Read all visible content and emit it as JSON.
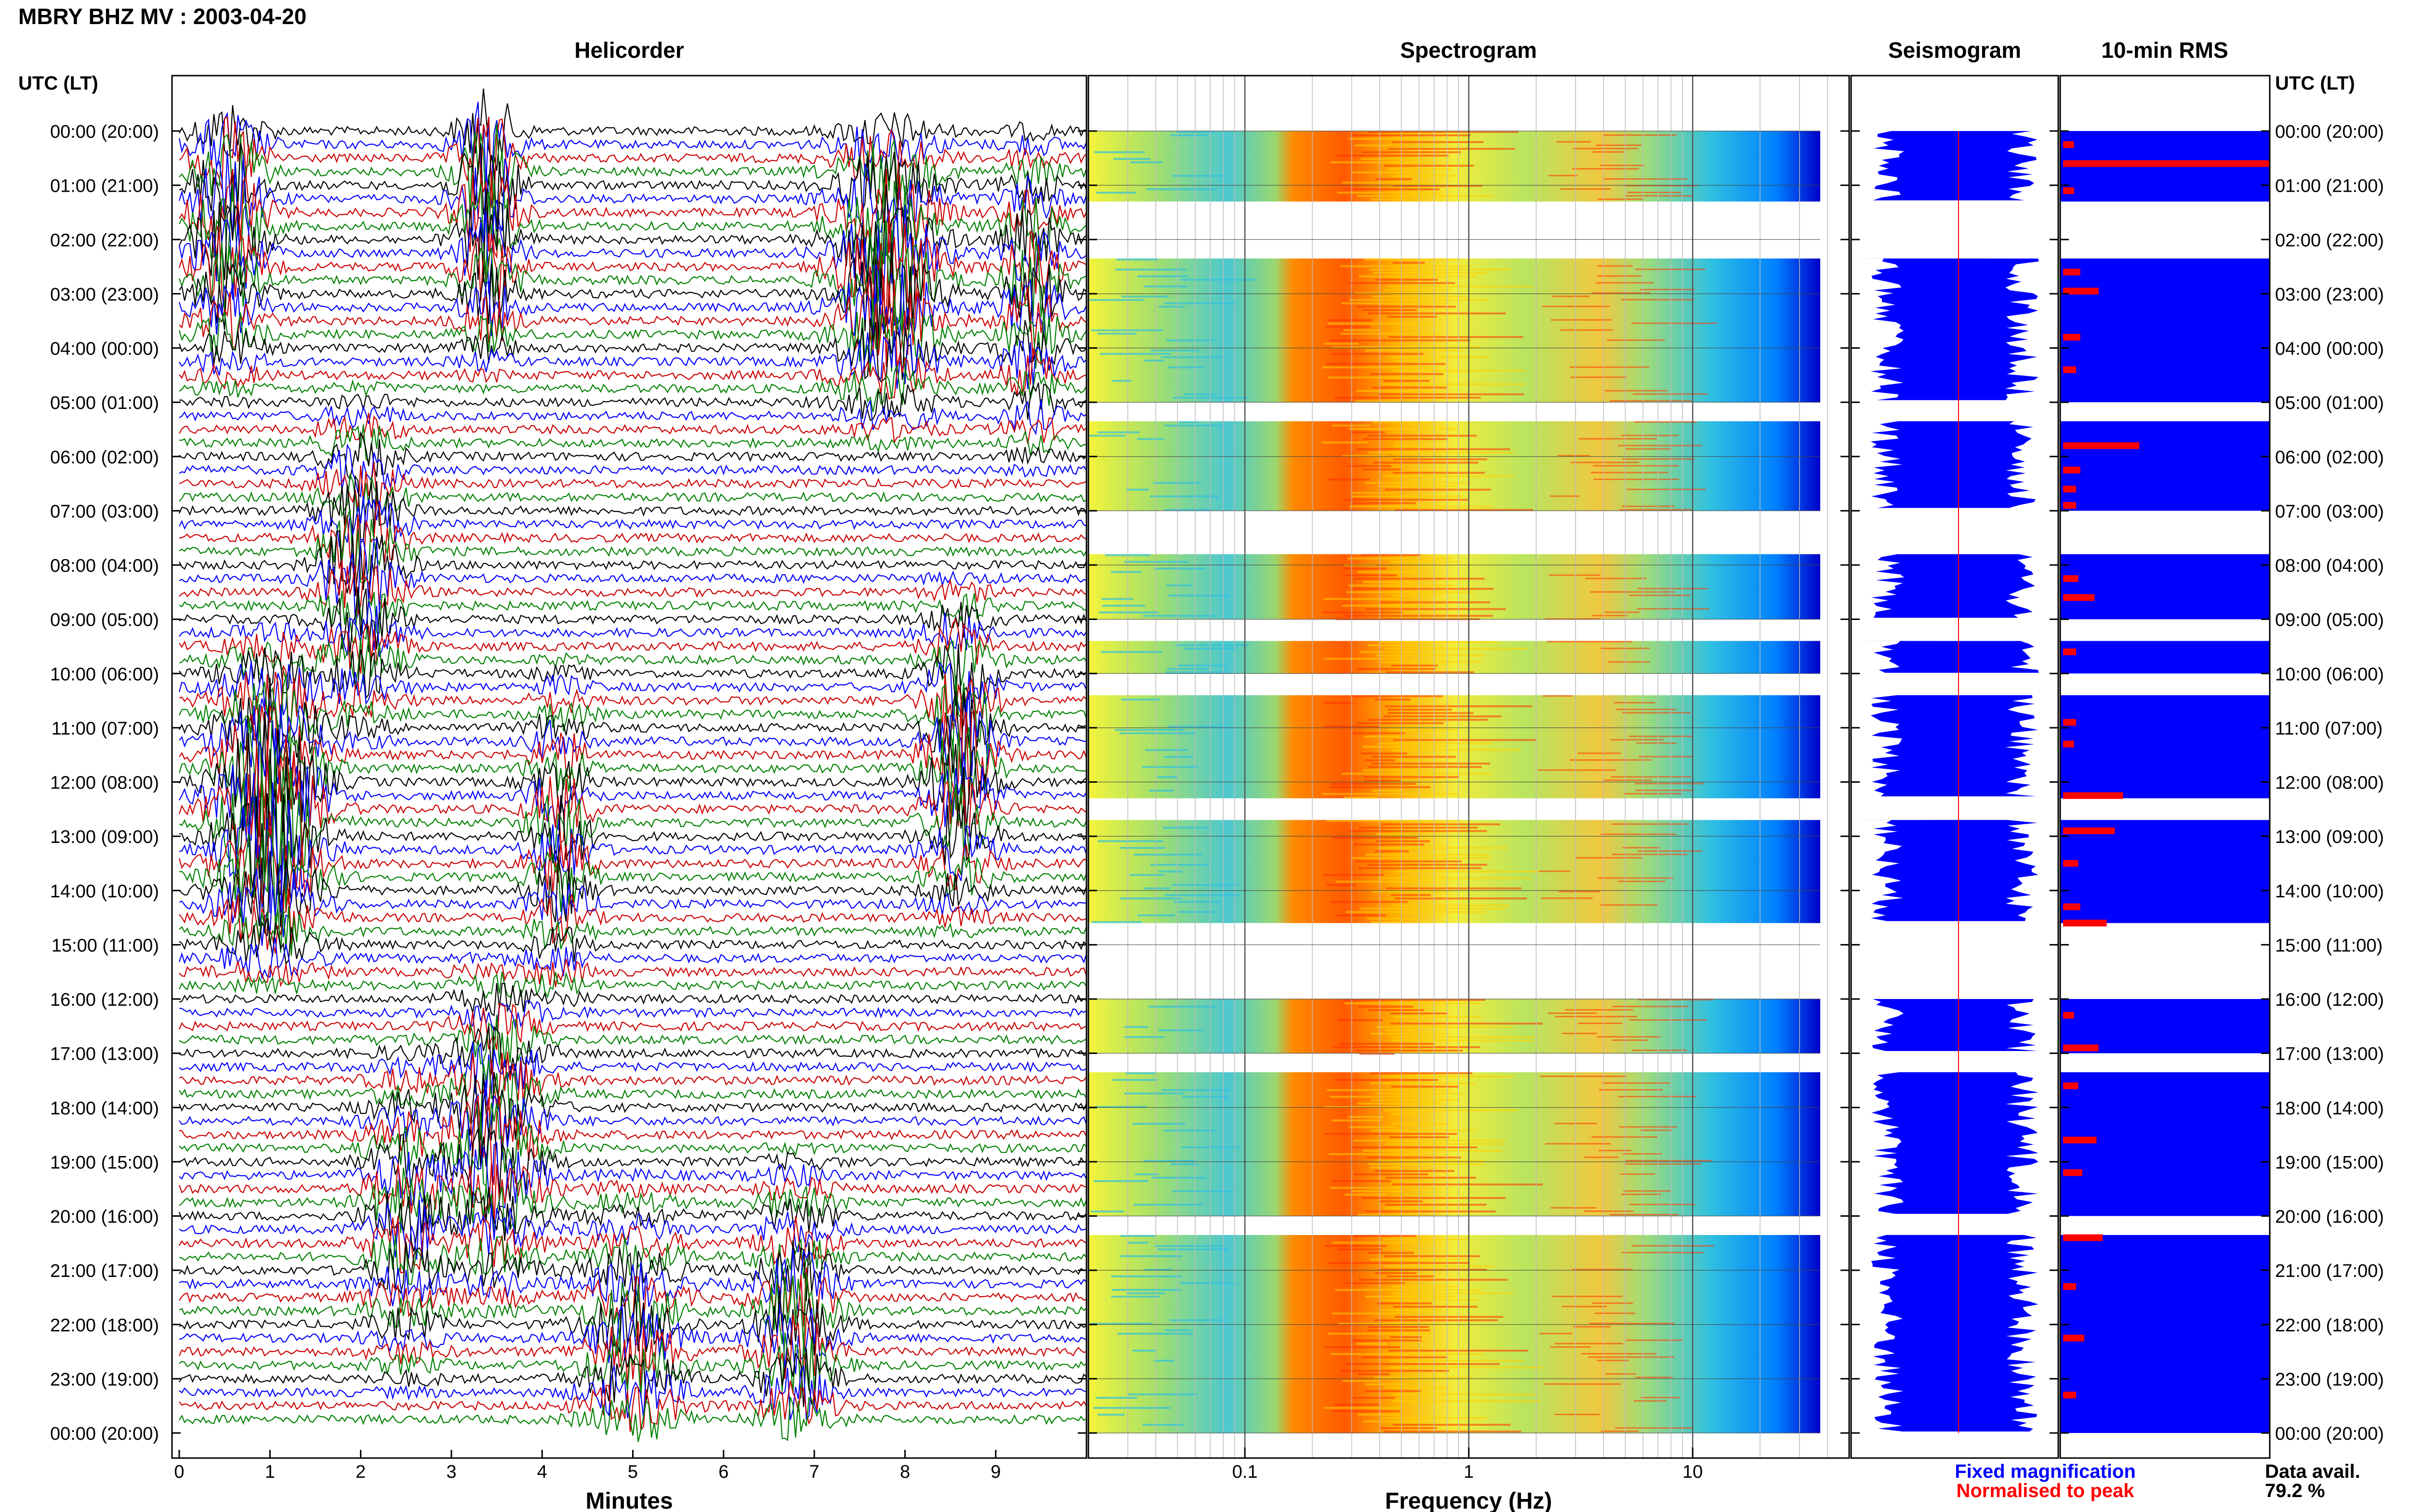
{
  "header": {
    "station": "MBRY BHZ MV : 2003-04-20"
  },
  "panels": {
    "helicorder": "Helicorder",
    "spectrogram": "Spectrogram",
    "seismogram": "Seismogram",
    "rms": "10-min RMS"
  },
  "axis_labels": {
    "time_left": "UTC (LT)",
    "time_right": "UTC (LT)",
    "helicorder_x": "Minutes",
    "spectrogram_x": "Frequency (Hz)"
  },
  "legend": {
    "fixed": "Fixed magnification",
    "normalised": "Normalised to peak",
    "fixed_color": "#0000ff",
    "normalised_color": "#ff0000"
  },
  "data_availability": {
    "label": "Data avail.",
    "value": "79.2 %"
  },
  "colors": {
    "trace_colors": [
      "#000000",
      "#0000ff",
      "#cc0000",
      "#008000"
    ],
    "seismogram_fill": "#0000ff",
    "rms_bar": "#ff0000",
    "rms_background": "#0000ff"
  },
  "chart_data": {
    "type": "heatmap",
    "title": "MBRY BHZ MV : 2003-04-20",
    "time_ticks": [
      "00:00 (20:00)",
      "01:00 (21:00)",
      "02:00 (22:00)",
      "03:00 (23:00)",
      "04:00 (00:00)",
      "05:00 (01:00)",
      "06:00 (02:00)",
      "07:00 (03:00)",
      "08:00 (04:00)",
      "09:00 (05:00)",
      "10:00 (06:00)",
      "11:00 (07:00)",
      "12:00 (08:00)",
      "13:00 (09:00)",
      "14:00 (10:00)",
      "15:00 (11:00)",
      "16:00 (12:00)",
      "17:00 (13:00)",
      "18:00 (14:00)",
      "19:00 (15:00)",
      "20:00 (16:00)",
      "21:00 (17:00)",
      "22:00 (18:00)",
      "23:00 (19:00)",
      "00:00 (20:00)"
    ],
    "helicorder": {
      "xlabel": "Minutes",
      "xticks": [
        "0",
        "1",
        "2",
        "3",
        "4",
        "5",
        "6",
        "7",
        "8",
        "9"
      ],
      "xlim": [
        0,
        10
      ]
    },
    "spectrogram": {
      "xlabel": "Frequency (Hz)",
      "xticks": [
        "0.1",
        "1",
        "10"
      ],
      "xlim": [
        0.02,
        50
      ],
      "log_scale": true,
      "data_hours": [
        [
          0.0,
          1.3
        ],
        [
          2.35,
          5.0
        ],
        [
          5.35,
          7.0
        ],
        [
          7.8,
          9.0
        ],
        [
          9.4,
          10.0
        ],
        [
          10.4,
          12.3
        ],
        [
          12.7,
          14.6
        ],
        [
          16.0,
          17.0
        ],
        [
          17.35,
          20.0
        ],
        [
          20.35,
          24.0
        ]
      ]
    },
    "rms": {
      "bars": [
        {
          "hour": 0.25,
          "value": 0.04
        },
        {
          "hour": 0.6,
          "value": 1.0
        },
        {
          "hour": 1.1,
          "value": 0.04
        },
        {
          "hour": 2.6,
          "value": 0.07
        },
        {
          "hour": 2.95,
          "value": 0.16
        },
        {
          "hour": 3.8,
          "value": 0.07
        },
        {
          "hour": 4.4,
          "value": 0.05
        },
        {
          "hour": 5.8,
          "value": 0.36
        },
        {
          "hour": 6.25,
          "value": 0.07
        },
        {
          "hour": 6.6,
          "value": 0.05
        },
        {
          "hour": 6.9,
          "value": 0.05
        },
        {
          "hour": 8.25,
          "value": 0.06
        },
        {
          "hour": 8.6,
          "value": 0.14
        },
        {
          "hour": 9.6,
          "value": 0.05
        },
        {
          "hour": 10.9,
          "value": 0.05
        },
        {
          "hour": 11.3,
          "value": 0.04
        },
        {
          "hour": 12.25,
          "value": 0.28
        },
        {
          "hour": 12.9,
          "value": 0.24
        },
        {
          "hour": 13.5,
          "value": 0.06
        },
        {
          "hour": 14.3,
          "value": 0.07
        },
        {
          "hour": 14.6,
          "value": 0.2
        },
        {
          "hour": 16.3,
          "value": 0.04
        },
        {
          "hour": 16.9,
          "value": 0.16
        },
        {
          "hour": 17.6,
          "value": 0.06
        },
        {
          "hour": 18.6,
          "value": 0.15
        },
        {
          "hour": 19.2,
          "value": 0.08
        },
        {
          "hour": 20.4,
          "value": 0.18
        },
        {
          "hour": 21.3,
          "value": 0.05
        },
        {
          "hour": 22.25,
          "value": 0.09
        },
        {
          "hour": 23.3,
          "value": 0.05
        }
      ]
    }
  }
}
